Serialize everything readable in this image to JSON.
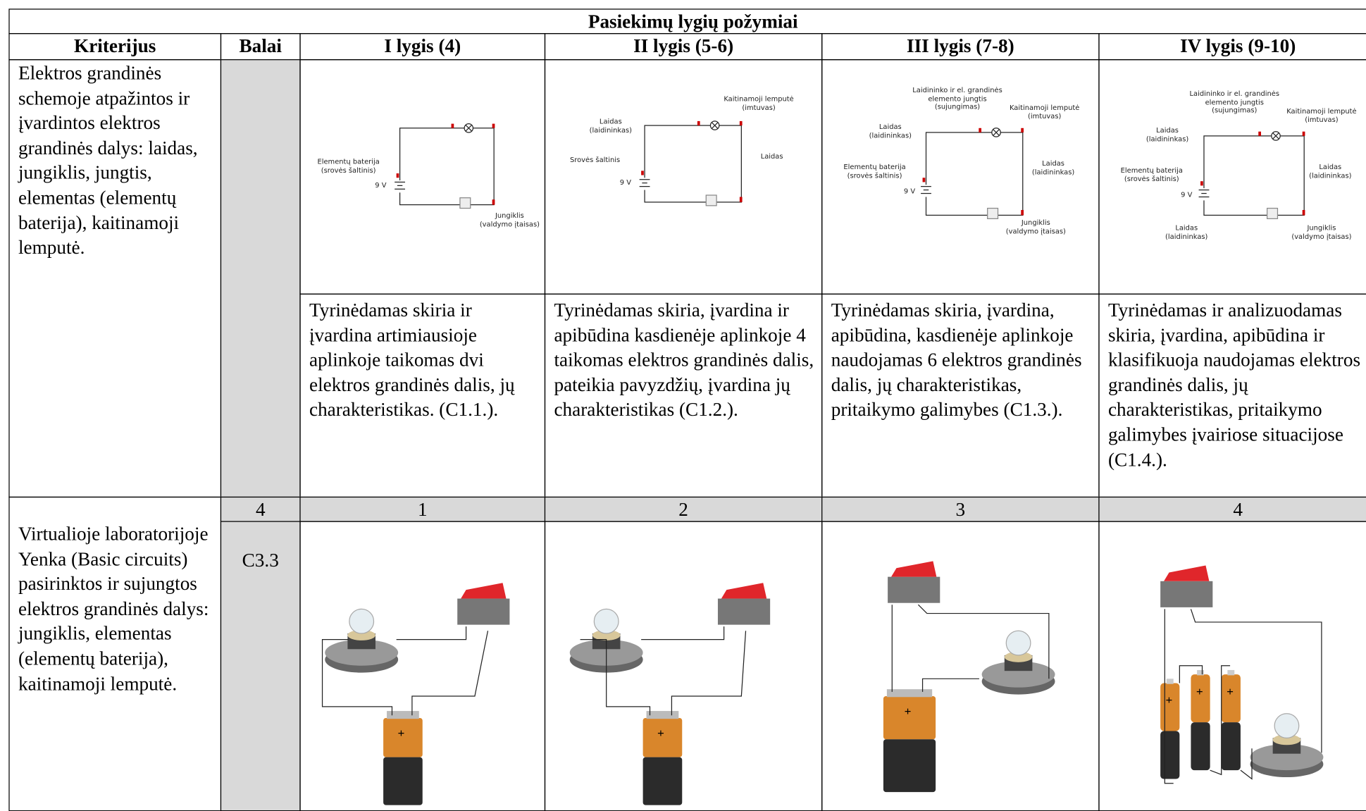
{
  "header": {
    "title": "Pasiekimų lygių požymiai",
    "columns": [
      "Kriterijus",
      "Balai",
      "I lygis (4)",
      "II lygis (5-6)",
      "III lygis (7-8)",
      "IV lygis (9-10)"
    ]
  },
  "rows": [
    {
      "criterion": "Elektros grandinės schemoje atpažintos ir įvardintos elektros grandinės dalys: laidas, jungiklis, jungtis, elementas (elementų baterija), kaitinamoji lemputė.",
      "diagrams": [
        {
          "labels": [
            "Elementų baterija\n(srovės šaltinis)",
            "9 V",
            "Jungiklis\n(valdymo įtaisas)"
          ]
        },
        {
          "labels": [
            "Kaitinamoji lemputė\n(imtuvas)",
            "Laidas\n(laidininkas)",
            "Srovės šaltinis",
            "9 V",
            "Laidas"
          ]
        },
        {
          "labels": [
            "Laidininko ir el. grandinės\nelemento jungtis\n(sujungimas)",
            "Kaitinamoji lemputė\n(imtuvas)",
            "Laidas\n(laidininkas)",
            "Elementų baterija\n(srovės šaltinis)",
            "9 V",
            "Laidas\n(laidininkas)",
            "Jungiklis\n(valdymo įtaisas)"
          ]
        },
        {
          "labels": [
            "Laidininko ir el. grandinės\nelemento jungtis\n(sujungimas)",
            "Kaitinamoji lemputė\n(imtuvas)",
            "Laidas\n(laidininkas)",
            "Elementų baterija\n(srovės šaltinis)",
            "9 V",
            "Laidas\n(laidininkas)",
            "Laidas\n(laidininkas)",
            "Jungiklis\n(valdymo įtaisas)"
          ]
        }
      ],
      "descriptions": [
        "Tyrinėdamas skiria ir įvardina artimiausioje aplinkoje taikomas dvi elektros grandinės dalis, jų charakteristikas. (C1.1.).",
        "Tyrinėdamas skiria, įvardina ir apibūdina kasdienėje aplinkoje 4 taikomas elektros grandinės dalis, pateikia pavyzdžių, įvardina jų charakteristikas (C1.2.).",
        "Tyrinėdamas skiria, įvardina, apibūdina, kasdienėje aplinkoje naudojamas 6 elektros grandinės dalis, jų charakteristikas, pritaikymo galimybes (C1.3.).",
        "Tyrinėdamas ir analizuodamas skiria, įvardina, apibūdina ir klasifikuoja naudojamas elektros grandinės dalis, jų charakteristikas, pritaikymo galimybes įvairiose situacijose (C1.4.)."
      ]
    },
    {
      "criterion": "Virtualioje laboratorijoje Yenka (Basic circuits) pasirinktos ir sujungtos elektros grandinės dalys: jungiklis, elementas (elementų baterija), kaitinamoji lemputė.",
      "points": "C3.3",
      "scores": [
        4,
        1,
        2,
        3,
        4
      ]
    }
  ]
}
